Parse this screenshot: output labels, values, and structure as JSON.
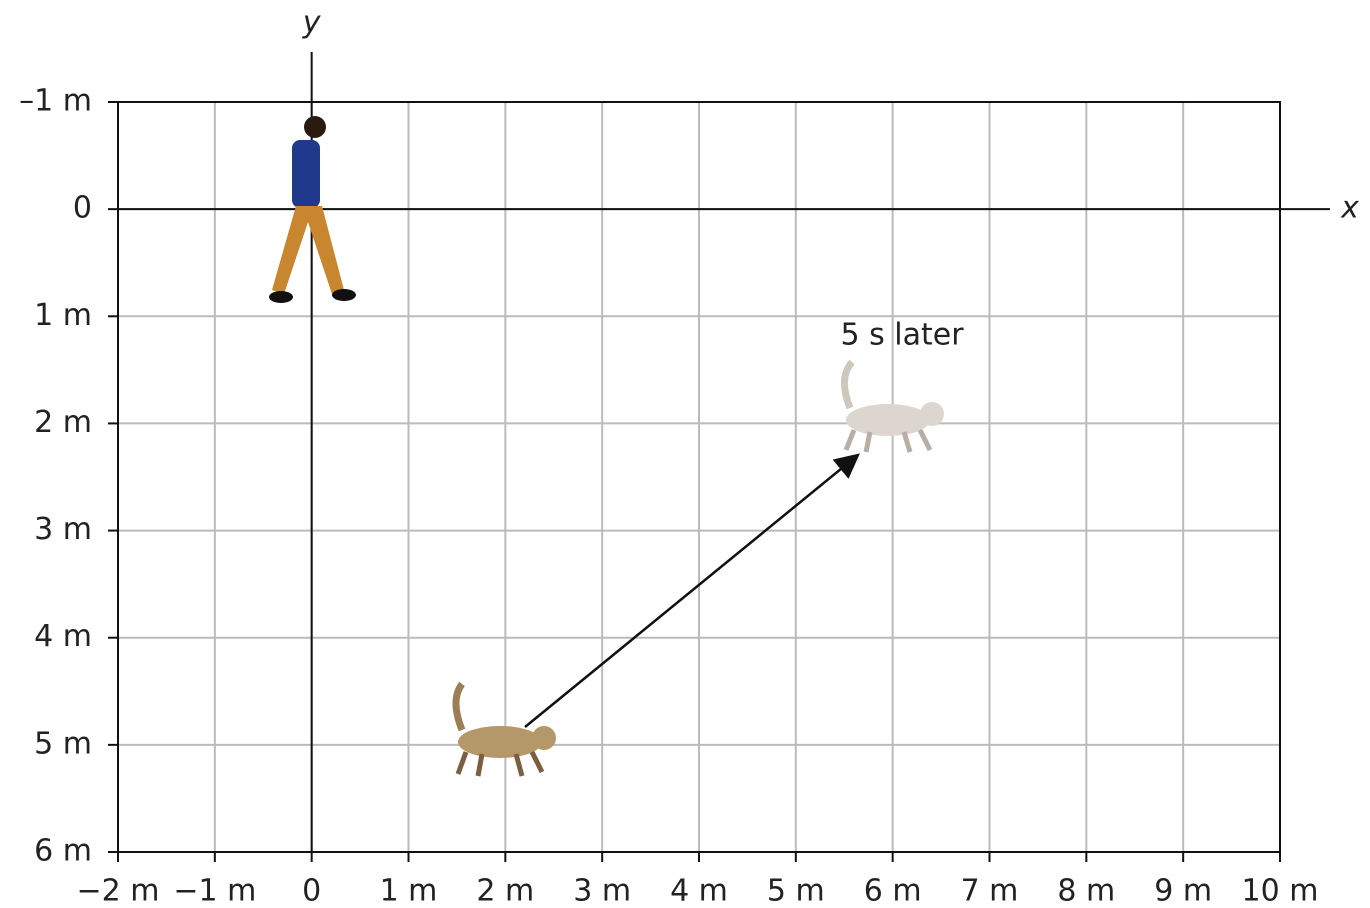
{
  "figure": {
    "x_label": "x",
    "y_label": "y",
    "annotation": "5 s later",
    "xlim": [
      -2,
      10
    ],
    "ylim": [
      -1,
      6
    ],
    "xticks": [
      {
        "value": -2,
        "label": "−2 m"
      },
      {
        "value": -1,
        "label": "−1 m"
      },
      0,
      {
        "value": 1,
        "label": "1 m"
      },
      {
        "value": 2,
        "label": "2 m"
      },
      {
        "value": 3,
        "label": "3 m"
      },
      {
        "value": 4,
        "label": "4 m"
      },
      {
        "value": 5,
        "label": "5 m"
      },
      {
        "value": 6,
        "label": "6 m"
      },
      {
        "value": 7,
        "label": "7 m"
      },
      {
        "value": 8,
        "label": "8 m"
      },
      {
        "value": 9,
        "label": "9 m"
      },
      {
        "value": 10,
        "label": "10 m"
      }
    ],
    "yticks": [
      {
        "value": -1,
        "label": "–1 m"
      },
      0,
      {
        "value": 1,
        "label": "1 m"
      },
      {
        "value": 2,
        "label": "2 m"
      },
      {
        "value": 3,
        "label": "3 m"
      },
      {
        "value": 4,
        "label": "4 m"
      },
      {
        "value": 5,
        "label": "5 m"
      },
      {
        "value": 6,
        "label": "6 m"
      }
    ]
  }
}
